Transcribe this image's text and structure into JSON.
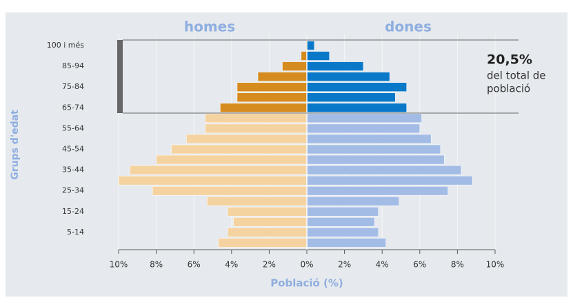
{
  "chart_data": {
    "type": "pyramid",
    "y_label": "Grups d'edat",
    "x_label": "Població (%)",
    "categories": [
      "100 i més",
      null,
      "85-94",
      null,
      "75-84",
      null,
      "65-74",
      null,
      "55-64",
      null,
      "45-54",
      null,
      "35-44",
      null,
      "25-34",
      null,
      "15-24",
      null,
      "5-14",
      null
    ],
    "series": [
      {
        "name": "homes",
        "side": "left",
        "colors": [
          "#d68b1e",
          "#d68b1e",
          "#d68b1e",
          "#d68b1e",
          "#d68b1e",
          "#d68b1e",
          "#d68b1e",
          "#f5d3a0",
          "#f5d3a0",
          "#f5d3a0",
          "#f5d3a0",
          "#f5d3a0",
          "#f5d3a0",
          "#f5d3a0",
          "#f5d3a0",
          "#f5d3a0",
          "#f5d3a0",
          "#f5d3a0",
          "#f5d3a0",
          "#f5d3a0"
        ],
        "values": [
          0.05,
          0.3,
          1.3,
          2.6,
          3.7,
          3.7,
          4.6,
          5.4,
          5.4,
          6.4,
          7.2,
          8.0,
          9.4,
          10.0,
          8.2,
          5.3,
          4.2,
          3.9,
          4.2,
          4.7
        ]
      },
      {
        "name": "dones",
        "side": "right",
        "colors": [
          "#0a78c8",
          "#0a78c8",
          "#0a78c8",
          "#0a78c8",
          "#0a78c8",
          "#0a78c8",
          "#0a78c8",
          "#a3bce6",
          "#a3bce6",
          "#a3bce6",
          "#a3bce6",
          "#a3bce6",
          "#a3bce6",
          "#a3bce6",
          "#a3bce6",
          "#a3bce6",
          "#a3bce6",
          "#a3bce6",
          "#a3bce6",
          "#a3bce6"
        ],
        "values": [
          0.4,
          1.2,
          3.0,
          4.4,
          5.3,
          4.7,
          5.3,
          6.1,
          6.0,
          6.6,
          7.1,
          7.3,
          8.2,
          8.8,
          7.5,
          4.9,
          3.8,
          3.6,
          3.8,
          4.2
        ]
      }
    ],
    "xlim": [
      -10,
      10
    ],
    "xticks": [
      {
        "value": -10,
        "label": "10%"
      },
      {
        "value": -8,
        "label": "8%"
      },
      {
        "value": -6,
        "label": "6%"
      },
      {
        "value": -4,
        "label": "4%"
      },
      {
        "value": -2,
        "label": "2%"
      },
      {
        "value": 0,
        "label": "0%"
      },
      {
        "value": 2,
        "label": "2%"
      },
      {
        "value": 4,
        "label": "4%"
      },
      {
        "value": 6,
        "label": "6%"
      },
      {
        "value": 8,
        "label": "8%"
      },
      {
        "value": 10,
        "label": "10%"
      }
    ],
    "annotation": {
      "value": "20,5%",
      "lines": [
        "del total de",
        "població"
      ]
    }
  }
}
